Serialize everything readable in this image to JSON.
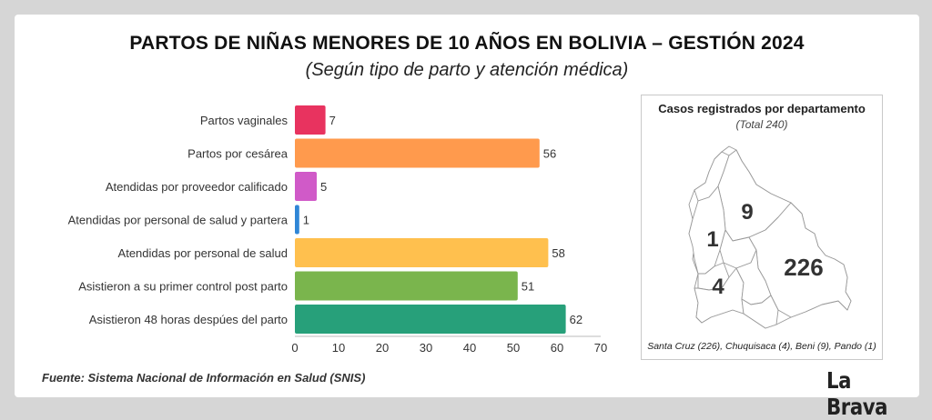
{
  "header": {
    "title": "PARTOS DE NIÑAS MENORES DE 10 AÑOS EN BOLIVIA – GESTIÓN 2024",
    "subtitle": "(Según tipo de parto y atención médica)"
  },
  "chart_data": {
    "type": "bar",
    "orientation": "horizontal",
    "categories": [
      "Partos vaginales",
      "Partos por cesárea",
      "Atendidas por proveedor calificado",
      "Atendidas por personal de salud y partera",
      "Atendidas por personal de salud",
      "Asistieron a su primer control post parto",
      "Asistieron 48 horas despúes del parto"
    ],
    "values": [
      7,
      56,
      5,
      1,
      58,
      51,
      62
    ],
    "colors": [
      "#e8335f",
      "#ff9a4d",
      "#d05ac8",
      "#2f86d6",
      "#ffc04e",
      "#7ab54d",
      "#27a07a"
    ],
    "xlim": [
      0,
      70
    ],
    "xticks": [
      "0",
      "10",
      "20",
      "30",
      "40",
      "50",
      "60",
      "70"
    ],
    "grid": false,
    "data_labels": true
  },
  "map": {
    "title": "Casos registrados por departamento",
    "subtitle": "(Total 240)",
    "labels": {
      "beni": "9",
      "pando": "1",
      "santa_cruz": "226",
      "chuquisaca": "4"
    },
    "footer": "Santa Cruz (226), Chuquisaca (4), Beni (9), Pando (1)"
  },
  "footer": {
    "source": "Fuente: Sistema Nacional de Información en Salud (SNIS)",
    "logo": "La Brava"
  }
}
